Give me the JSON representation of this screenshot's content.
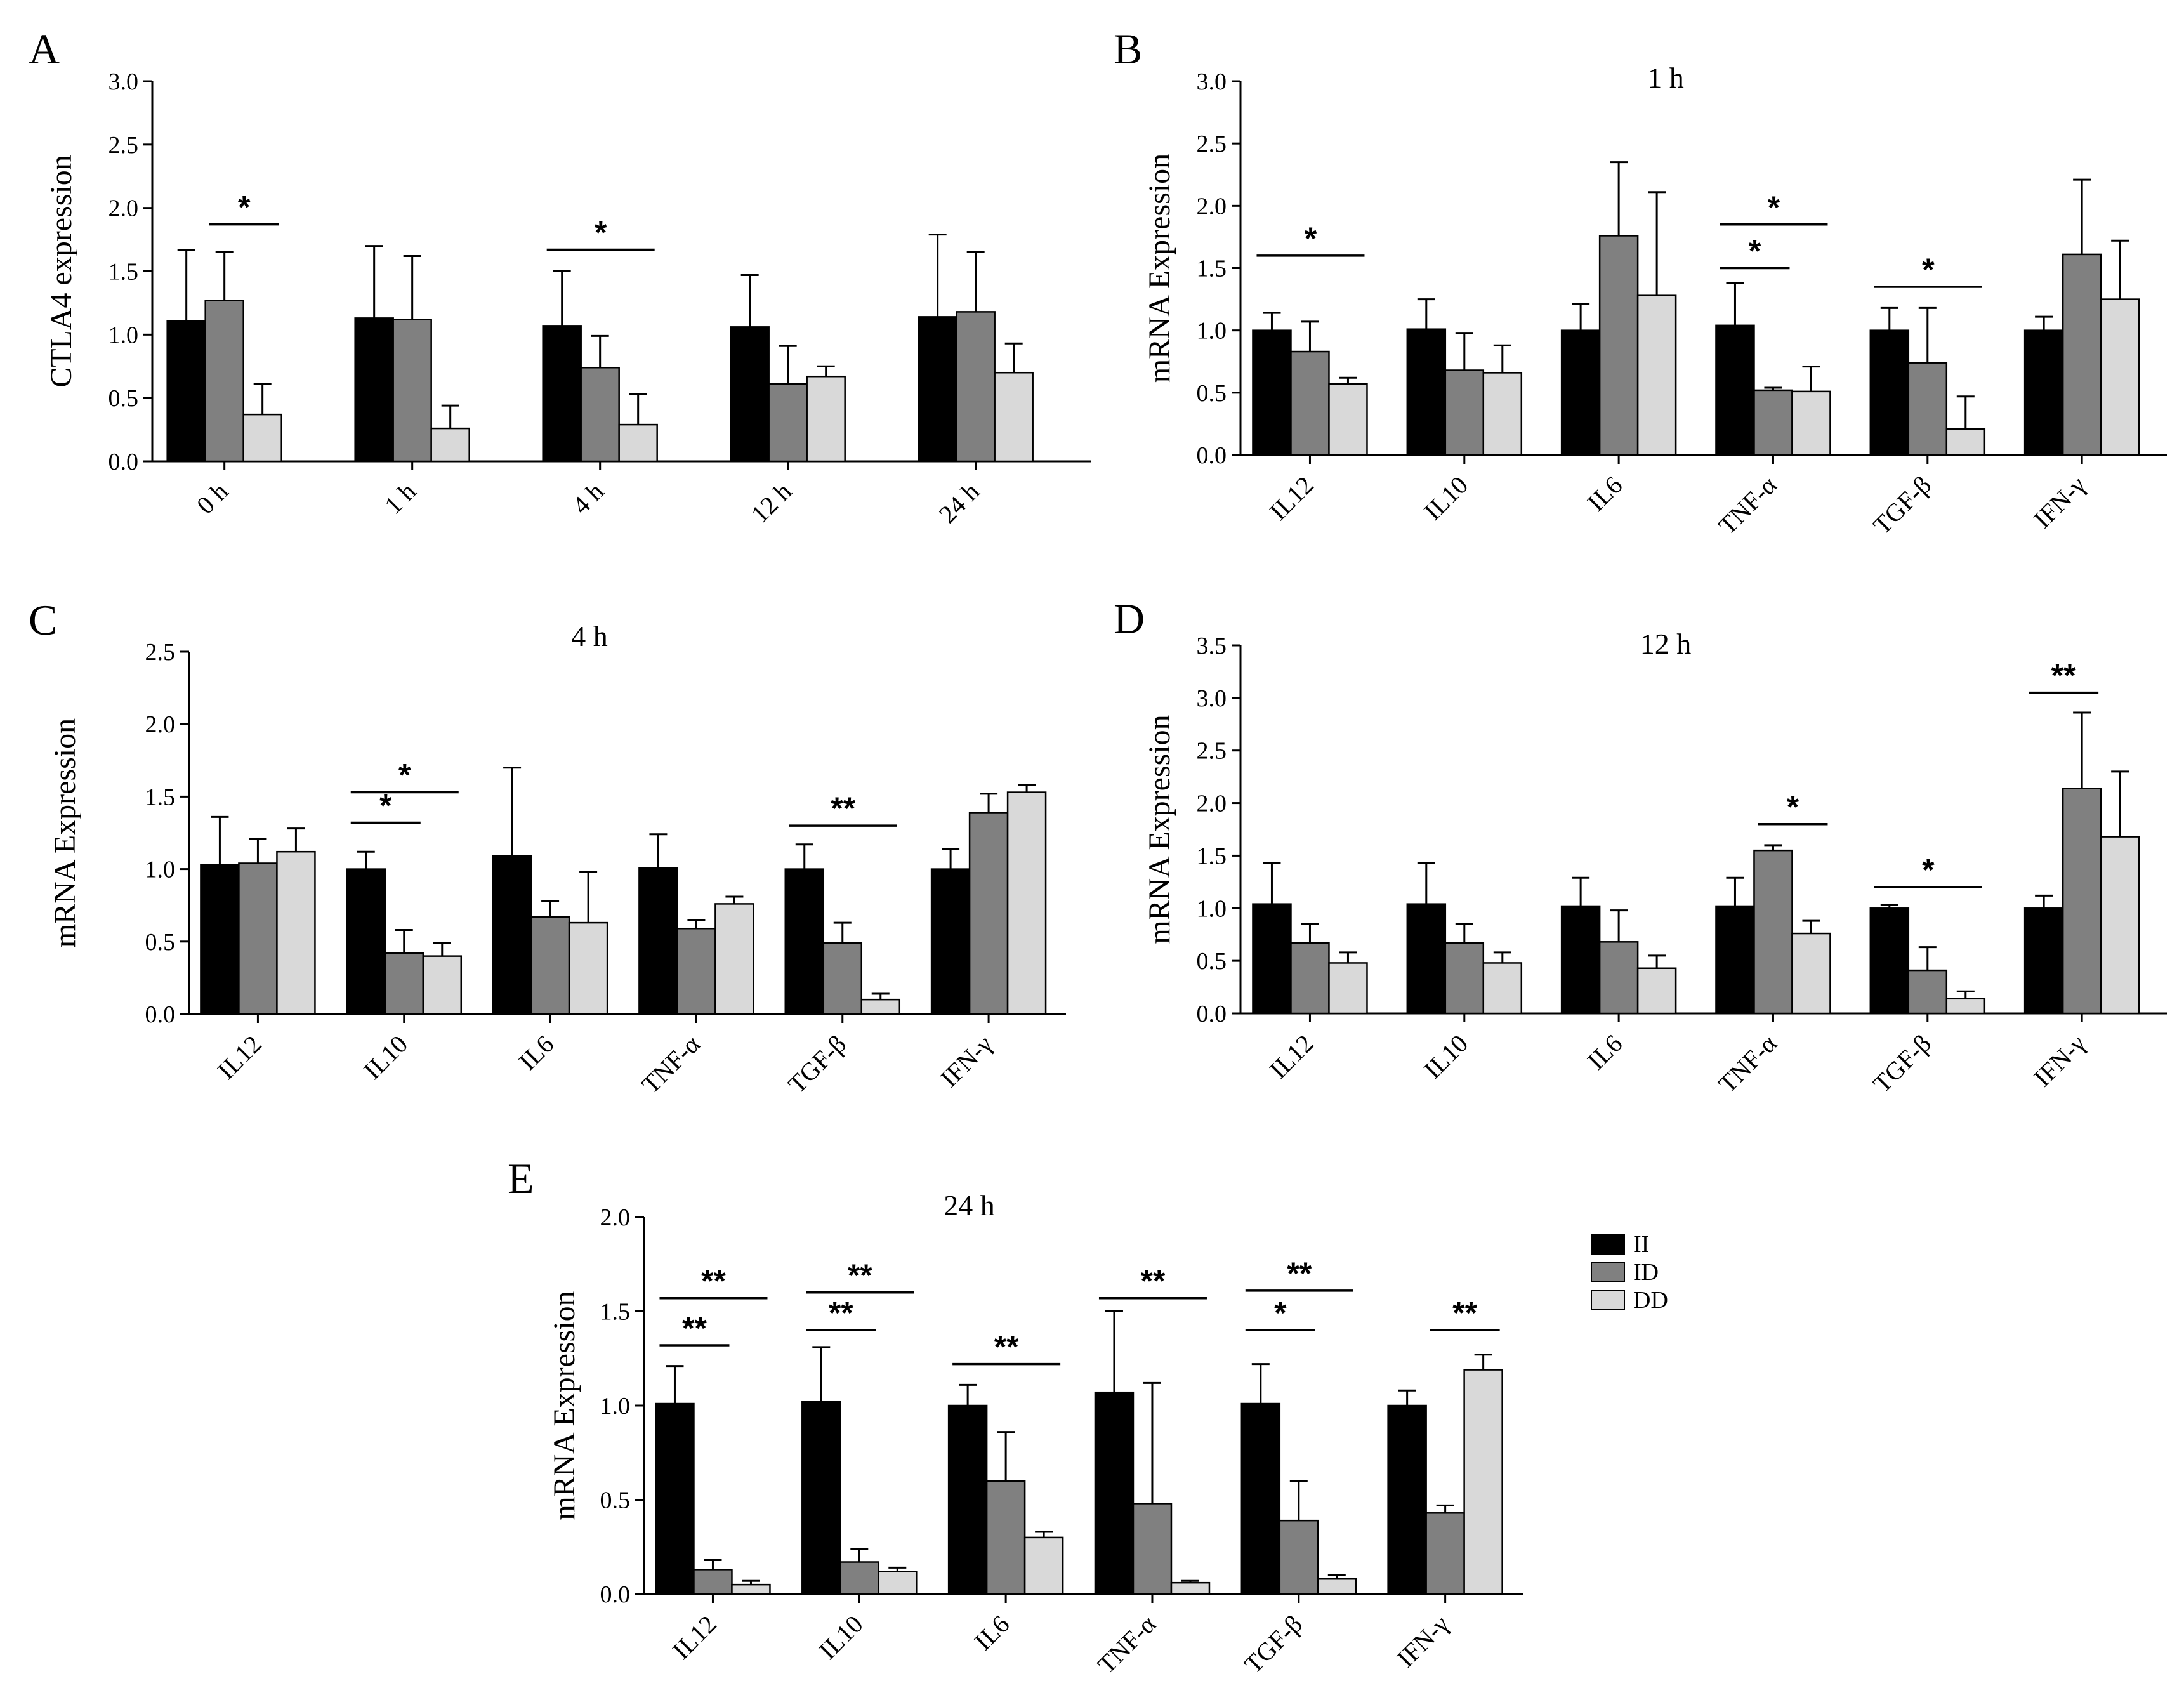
{
  "legend": {
    "items": [
      {
        "name": "II",
        "color": "#000000"
      },
      {
        "name": "ID",
        "color": "#808080"
      },
      {
        "name": "DD",
        "color": "#d9d9d9"
      }
    ]
  },
  "chart_data": [
    {
      "panel": "A",
      "type": "bar",
      "title": "",
      "ylabel": "CTLA4 expression",
      "ylim": [
        0,
        3.0
      ],
      "yticks": [
        "0.0",
        "0.5",
        "1.0",
        "1.5",
        "2.0",
        "2.5",
        "3.0"
      ],
      "categories": [
        "0 h",
        "1 h",
        "4 h",
        "12 h",
        "24 h"
      ],
      "series": [
        {
          "name": "II",
          "values": [
            1.11,
            1.13,
            1.07,
            1.06,
            1.14
          ],
          "errors": [
            0.56,
            0.57,
            0.43,
            0.41,
            0.65
          ]
        },
        {
          "name": "ID",
          "values": [
            1.27,
            1.12,
            0.74,
            0.61,
            1.18
          ],
          "errors": [
            0.38,
            0.5,
            0.25,
            0.3,
            0.47
          ]
        },
        {
          "name": "DD",
          "values": [
            0.37,
            0.26,
            0.29,
            0.67,
            0.7
          ],
          "errors": [
            0.24,
            0.18,
            0.24,
            0.08,
            0.23
          ]
        }
      ],
      "annotations": [
        {
          "cat": 0,
          "from": 1,
          "to": 2,
          "y": 1.87,
          "label": "*"
        },
        {
          "cat": 2,
          "from": 0,
          "to": 2,
          "y": 1.67,
          "label": "*"
        }
      ]
    },
    {
      "panel": "B",
      "type": "bar",
      "title": "1 h",
      "ylabel": "mRNA Expression",
      "ylim": [
        0,
        3.0
      ],
      "yticks": [
        "0.0",
        "0.5",
        "1.0",
        "1.5",
        "2.0",
        "2.5",
        "3.0"
      ],
      "categories": [
        "IL12",
        "IL10",
        "IL6",
        "TNF-α",
        "TGF-β",
        "IFN-γ"
      ],
      "series": [
        {
          "name": "II",
          "values": [
            1.0,
            1.01,
            1.0,
            1.04,
            1.0,
            1.0
          ],
          "errors": [
            0.14,
            0.24,
            0.21,
            0.34,
            0.18,
            0.11
          ]
        },
        {
          "name": "ID",
          "values": [
            0.83,
            0.68,
            1.76,
            0.52,
            0.74,
            1.61
          ],
          "errors": [
            0.24,
            0.3,
            0.59,
            0.02,
            0.44,
            0.6
          ]
        },
        {
          "name": "DD",
          "values": [
            0.57,
            0.66,
            1.28,
            0.51,
            0.21,
            1.25
          ],
          "errors": [
            0.05,
            0.22,
            0.83,
            0.2,
            0.26,
            0.47
          ]
        }
      ],
      "annotations": [
        {
          "cat": 0,
          "from": 0,
          "to": 2,
          "y": 1.6,
          "label": "*"
        },
        {
          "cat": 3,
          "from": 0,
          "to": 1,
          "y": 1.5,
          "label": "*"
        },
        {
          "cat": 3,
          "from": 0,
          "to": 2,
          "y": 1.85,
          "label": "*"
        },
        {
          "cat": 4,
          "from": 0,
          "to": 2,
          "y": 1.35,
          "label": "*"
        }
      ]
    },
    {
      "panel": "C",
      "type": "bar",
      "title": "4 h",
      "ylabel": "mRNA Expression",
      "ylim": [
        0,
        2.5
      ],
      "yticks": [
        "0.0",
        "0.5",
        "1.0",
        "1.5",
        "2.0",
        "2.5"
      ],
      "categories": [
        "IL12",
        "IL10",
        "IL6",
        "TNF-α",
        "TGF-β",
        "IFN-γ"
      ],
      "series": [
        {
          "name": "II",
          "values": [
            1.03,
            1.0,
            1.09,
            1.01,
            1.0,
            1.0
          ],
          "errors": [
            0.33,
            0.12,
            0.61,
            0.23,
            0.17,
            0.14
          ]
        },
        {
          "name": "ID",
          "values": [
            1.04,
            0.42,
            0.67,
            0.59,
            0.49,
            1.39
          ],
          "errors": [
            0.17,
            0.16,
            0.11,
            0.06,
            0.14,
            0.13
          ]
        },
        {
          "name": "DD",
          "values": [
            1.12,
            0.4,
            0.63,
            0.76,
            0.1,
            1.53
          ],
          "errors": [
            0.16,
            0.09,
            0.35,
            0.05,
            0.04,
            0.05
          ]
        }
      ],
      "annotations": [
        {
          "cat": 1,
          "from": 0,
          "to": 1,
          "y": 1.32,
          "label": "*"
        },
        {
          "cat": 1,
          "from": 0,
          "to": 2,
          "y": 1.53,
          "label": "*"
        },
        {
          "cat": 4,
          "from": 0,
          "to": 2,
          "y": 1.3,
          "label": "**"
        }
      ]
    },
    {
      "panel": "D",
      "type": "bar",
      "title": "12 h",
      "ylabel": "mRNA Expression",
      "ylim": [
        0,
        3.5
      ],
      "yticks": [
        "0.0",
        "0.5",
        "1.0",
        "1.5",
        "2.0",
        "2.5",
        "3.0",
        "3.5"
      ],
      "categories": [
        "IL12",
        "IL10",
        "IL6",
        "TNF-α",
        "TGF-β",
        "IFN-γ"
      ],
      "series": [
        {
          "name": "II",
          "values": [
            1.04,
            1.04,
            1.02,
            1.02,
            1.0,
            1.0
          ],
          "errors": [
            0.39,
            0.39,
            0.27,
            0.27,
            0.03,
            0.12
          ]
        },
        {
          "name": "ID",
          "values": [
            0.67,
            0.67,
            0.68,
            1.55,
            0.41,
            2.14
          ],
          "errors": [
            0.18,
            0.18,
            0.3,
            0.05,
            0.22,
            0.72
          ]
        },
        {
          "name": "DD",
          "values": [
            0.48,
            0.48,
            0.43,
            0.76,
            0.14,
            1.68
          ],
          "errors": [
            0.1,
            0.1,
            0.12,
            0.12,
            0.07,
            0.62
          ]
        }
      ],
      "annotations": [
        {
          "cat": 3,
          "from": 1,
          "to": 2,
          "y": 1.8,
          "label": "*"
        },
        {
          "cat": 4,
          "from": 0,
          "to": 2,
          "y": 1.2,
          "label": "*"
        },
        {
          "cat": 5,
          "from": 0,
          "to": 1,
          "y": 3.05,
          "label": "**"
        }
      ]
    },
    {
      "panel": "E",
      "type": "bar",
      "title": "24 h",
      "ylabel": "mRNA Expression",
      "ylim": [
        0,
        2.0
      ],
      "yticks": [
        "0.0",
        "0.5",
        "1.0",
        "1.5",
        "2.0"
      ],
      "categories": [
        "IL12",
        "IL10",
        "IL6",
        "TNF-α",
        "TGF-β",
        "IFN-γ"
      ],
      "series": [
        {
          "name": "II",
          "values": [
            1.01,
            1.02,
            1.0,
            1.07,
            1.01,
            1.0
          ],
          "errors": [
            0.2,
            0.29,
            0.11,
            0.43,
            0.21,
            0.08
          ]
        },
        {
          "name": "ID",
          "values": [
            0.13,
            0.17,
            0.6,
            0.48,
            0.39,
            0.43
          ],
          "errors": [
            0.05,
            0.07,
            0.26,
            0.64,
            0.21,
            0.04
          ]
        },
        {
          "name": "DD",
          "values": [
            0.05,
            0.12,
            0.3,
            0.06,
            0.08,
            1.19
          ],
          "errors": [
            0.02,
            0.02,
            0.03,
            0.01,
            0.02,
            0.08
          ]
        }
      ],
      "annotations": [
        {
          "cat": 0,
          "from": 0,
          "to": 1,
          "y": 1.32,
          "label": "**"
        },
        {
          "cat": 0,
          "from": 0,
          "to": 2,
          "y": 1.57,
          "label": "**"
        },
        {
          "cat": 1,
          "from": 0,
          "to": 1,
          "y": 1.4,
          "label": "**"
        },
        {
          "cat": 1,
          "from": 0,
          "to": 2,
          "y": 1.6,
          "label": "**"
        },
        {
          "cat": 2,
          "from": 0,
          "to": 2,
          "y": 1.22,
          "label": "**"
        },
        {
          "cat": 3,
          "from": 0,
          "to": 2,
          "y": 1.57,
          "label": "**"
        },
        {
          "cat": 4,
          "from": 0,
          "to": 1,
          "y": 1.4,
          "label": "*"
        },
        {
          "cat": 4,
          "from": 0,
          "to": 2,
          "y": 1.61,
          "label": "**"
        },
        {
          "cat": 5,
          "from": 1,
          "to": 2,
          "y": 1.4,
          "label": "**"
        }
      ]
    }
  ]
}
